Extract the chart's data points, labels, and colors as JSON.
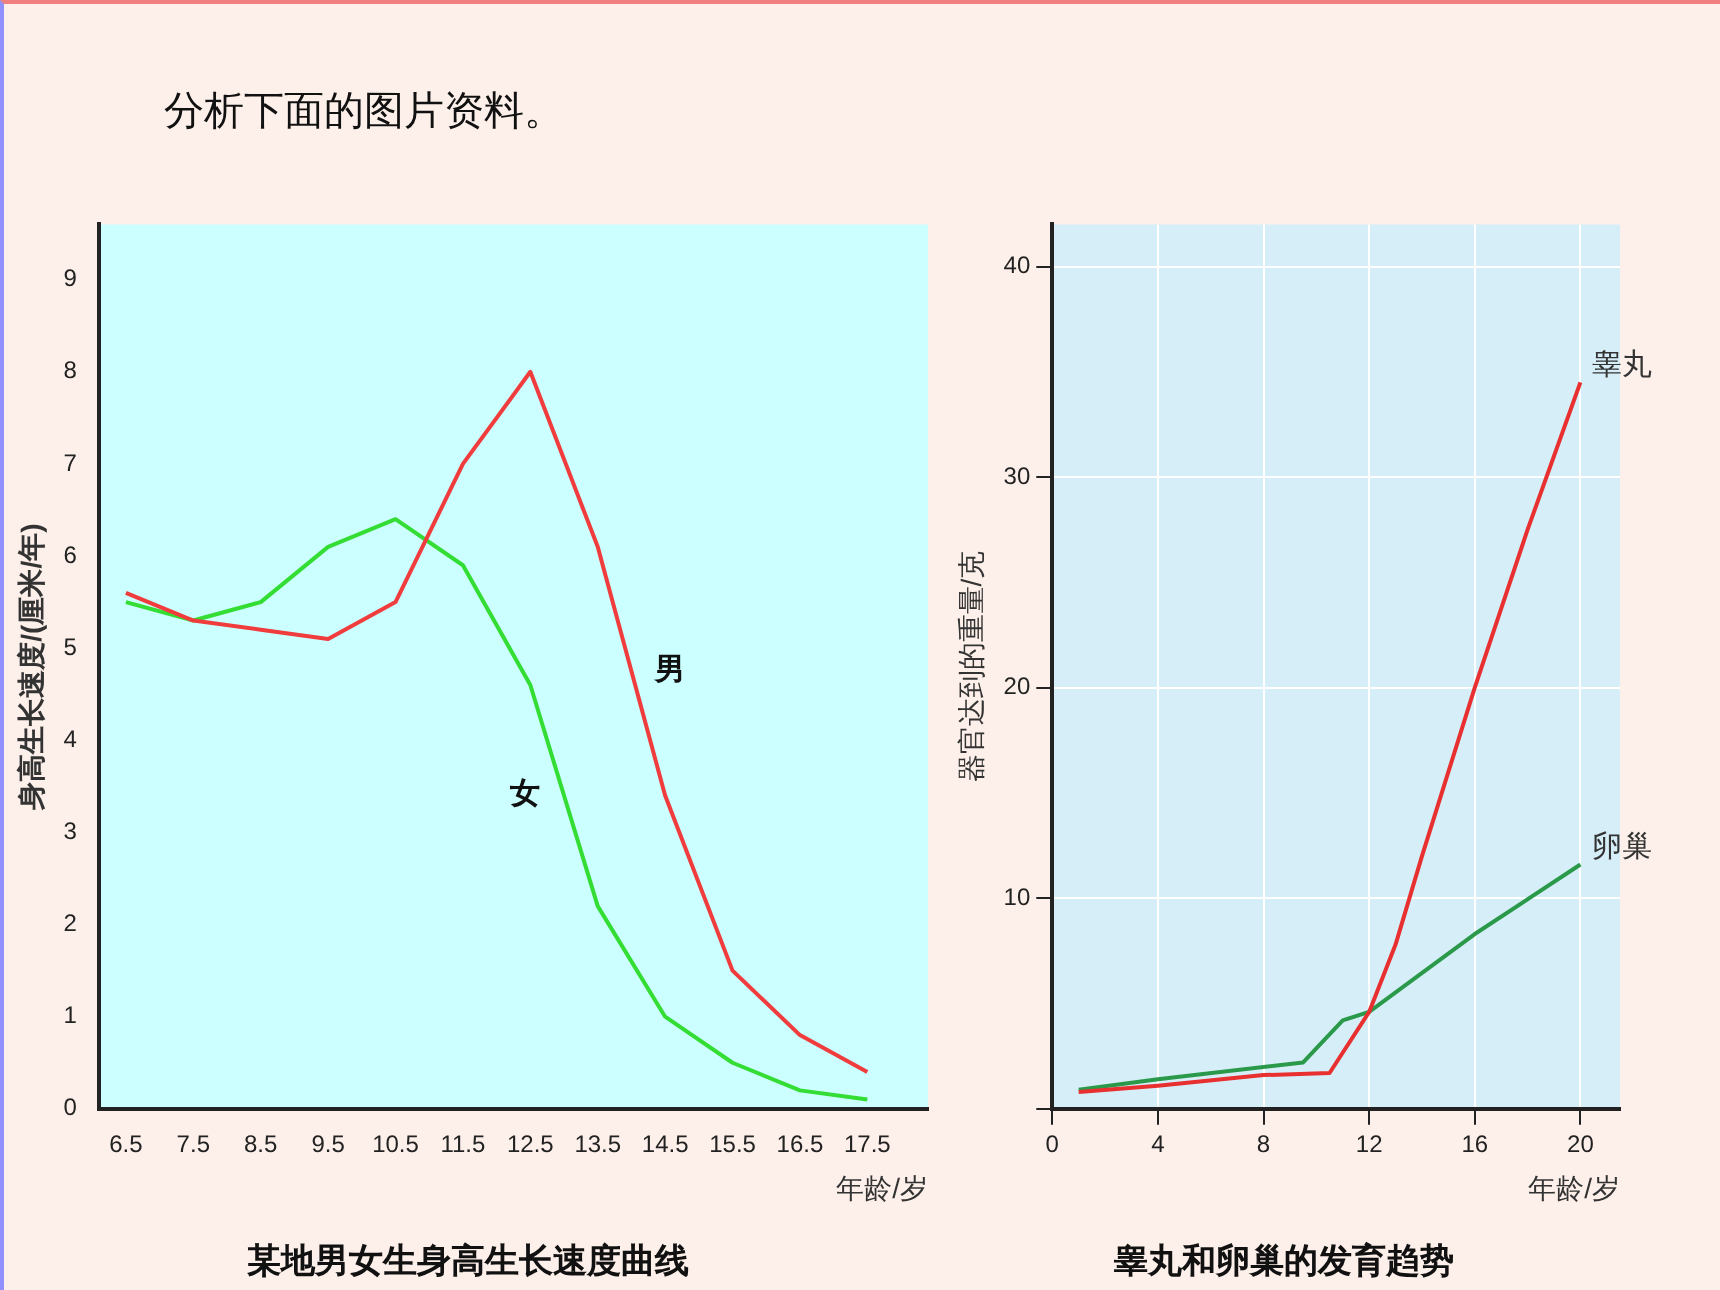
{
  "chart_data": [
    {
      "type": "line",
      "title": "某地男女生身高生长速度曲线",
      "xlabel": "年龄/岁",
      "ylabel": "身高生长速度/(厘米/年)",
      "annotations": [
        "分析下面的图片资料。"
      ],
      "xlim": [
        6.1,
        18.4
      ],
      "xticks": [
        6.5,
        7.5,
        8.5,
        9.5,
        10.5,
        11.5,
        12.5,
        13.5,
        14.5,
        15.5,
        16.5,
        17.5
      ],
      "ylim": [
        0,
        9.6
      ],
      "yticks": [
        0,
        1,
        2,
        3,
        4,
        5,
        6,
        7,
        8,
        9
      ],
      "grid": false,
      "legend": false,
      "marker": "none",
      "line_style": "solid",
      "series": [
        {
          "name": "男",
          "color": "#f03c3c",
          "x": [
            6.5,
            7.5,
            8.5,
            9.5,
            10.5,
            11.5,
            12.5,
            13.5,
            14.5,
            15.5,
            16.5,
            17.5
          ],
          "values": [
            5.6,
            5.3,
            5.2,
            5.1,
            5.5,
            7.0,
            8.0,
            6.1,
            3.4,
            1.5,
            0.8,
            0.4
          ]
        },
        {
          "name": "女",
          "color": "#33dd33",
          "x": [
            6.5,
            7.5,
            8.5,
            9.5,
            10.5,
            11.5,
            12.5,
            13.5,
            14.5,
            15.5,
            16.5,
            17.5
          ],
          "values": [
            5.5,
            5.3,
            5.5,
            6.1,
            6.4,
            5.9,
            4.6,
            2.2,
            1.0,
            0.5,
            0.2,
            0.1
          ]
        }
      ]
    },
    {
      "type": "line",
      "title": "睾丸和卵巢的发育趋势",
      "xlabel": "年龄/岁",
      "ylabel": "器官达到的重量/克",
      "xlim": [
        0,
        21.5
      ],
      "xticks": [
        0,
        4,
        8,
        12,
        16,
        20
      ],
      "ylim": [
        0,
        42
      ],
      "yticks": [
        {
          "value": 0,
          "label": null
        },
        10,
        20,
        30,
        40
      ],
      "grid": true,
      "legend": false,
      "marker": "none",
      "line_style": "solid",
      "series": [
        {
          "name": "睾丸",
          "color": "#e83030",
          "x": [
            1,
            4,
            8,
            10.5,
            12,
            13,
            14,
            16,
            18,
            20
          ],
          "values": [
            0.8,
            1.1,
            1.6,
            1.7,
            4.6,
            7.8,
            12,
            20,
            27.5,
            34.5
          ]
        },
        {
          "name": "卵巢",
          "color": "#2a9a4a",
          "x": [
            1,
            4,
            9.5,
            11,
            12,
            16,
            20
          ],
          "values": [
            0.9,
            1.4,
            2.2,
            4.2,
            4.6,
            8.3,
            11.6
          ]
        }
      ]
    }
  ]
}
